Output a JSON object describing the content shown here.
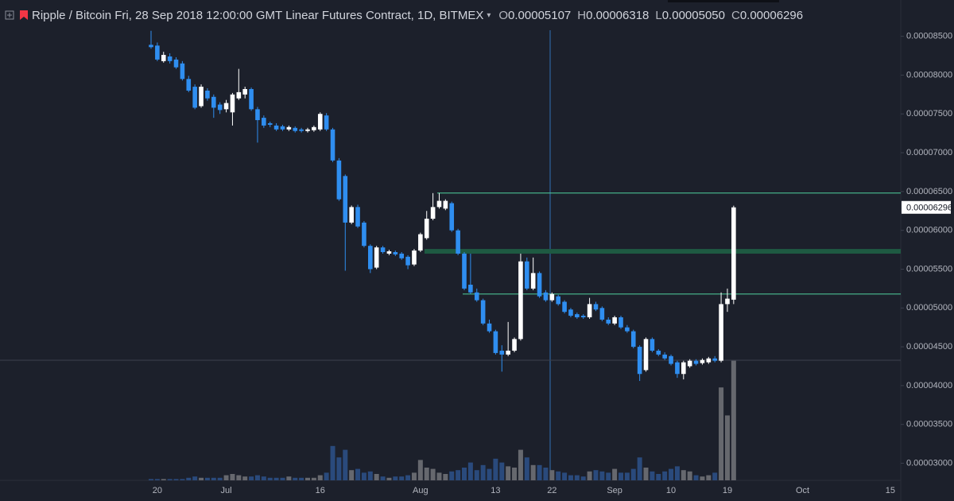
{
  "chart_data": {
    "type": "candlestick",
    "title": "Ripple / Bitcoin Fri, 28 Sep 2018 12:00:00 GMT Linear Futures Contract, 1D, BITMEX",
    "categories": [
      null,
      "20",
      null,
      null,
      null,
      null,
      null,
      null,
      null,
      null,
      null,
      null,
      "Jul",
      null,
      null,
      null,
      null,
      null,
      null,
      null,
      null,
      null,
      null,
      null,
      null,
      null,
      null,
      "16",
      null,
      null,
      null,
      null,
      null,
      null,
      null,
      null,
      null,
      null,
      null,
      null,
      null,
      null,
      null,
      "Aug",
      null,
      null,
      null,
      null,
      null,
      null,
      null,
      null,
      null,
      null,
      null,
      "13",
      null,
      null,
      null,
      null,
      null,
      null,
      null,
      null,
      "22",
      null,
      null,
      null,
      null,
      null,
      null,
      null,
      null,
      null,
      "Sep",
      null,
      null,
      null,
      null,
      null,
      null,
      null,
      null,
      "10",
      null,
      null,
      null,
      null,
      null,
      null,
      null,
      null,
      "19",
      null,
      null,
      null,
      null,
      null,
      null,
      null,
      null,
      null,
      null,
      null,
      "Oct",
      null,
      null,
      null,
      null,
      null,
      null,
      null,
      null,
      null,
      null,
      null,
      null,
      null,
      "15",
      null,
      null
    ],
    "series": [
      {
        "name": "O",
        "header_label": "0.00005107",
        "values": [
          8.39e-05,
          8.38e-05,
          8.18e-05,
          8.24e-05,
          8.2e-05,
          8.15e-05,
          7.95e-05,
          7.85e-05,
          7.6e-05,
          7.8e-05,
          7.72e-05,
          7.62e-05,
          7.56e-05,
          7.52e-05,
          7.7e-05,
          7.75e-05,
          7.82e-05,
          7.56e-05,
          7.45e-05,
          7.38e-05,
          7.35e-05,
          7.34e-05,
          7.3e-05,
          7.32e-05,
          7.3e-05,
          7.28e-05,
          7.29e-05,
          7.3e-05,
          7.48e-05,
          7.3e-05,
          6.9e-05,
          6.7e-05,
          6.1e-05,
          6.3e-05,
          6.1e-05,
          5.8e-05,
          5.52e-05,
          5.78e-05,
          5.7e-05,
          5.72e-05,
          5.7e-05,
          5.66e-05,
          5.56e-05,
          5.74e-05,
          5.9e-05,
          6.15e-05,
          6.3e-05,
          6.28e-05,
          6.35e-05,
          6e-05,
          5.7e-05,
          5.3e-05,
          5.2e-05,
          5.1e-05,
          4.8e-05,
          4.7e-05,
          4.45e-05,
          4.4e-05,
          4.45e-05,
          4.6e-05,
          5.6e-05,
          5.25e-05,
          5.45e-05,
          5.2e-05,
          5.1e-05,
          5.15e-05,
          5.08e-05,
          4.98e-05,
          4.92e-05,
          4.9e-05,
          4.88e-05,
          5.05e-05,
          5e-05,
          4.85e-05,
          4.8e-05,
          4.88e-05,
          4.75e-05,
          4.7e-05,
          4.5e-05,
          4.2e-05,
          4.6e-05,
          4.45e-05,
          4.4e-05,
          4.38e-05,
          4.3e-05,
          4.15e-05,
          4.25e-05,
          4.32e-05,
          4.29e-05,
          4.3e-05,
          4.35e-05,
          4.32e-05,
          5.05e-05,
          5.107e-05,
          null,
          null,
          null,
          null,
          null,
          null,
          null,
          null,
          null,
          null,
          null,
          null,
          null,
          null,
          null,
          null,
          null,
          null,
          null,
          null,
          null,
          null,
          null,
          null,
          null,
          null,
          null
        ]
      },
      {
        "name": "H",
        "header_label": "0.00006318",
        "values": [
          8.57e-05,
          8.42e-05,
          8.3e-05,
          8.28e-05,
          8.23e-05,
          8.18e-05,
          7.99e-05,
          7.88e-05,
          7.88e-05,
          7.83e-05,
          7.75e-05,
          7.65e-05,
          7.68e-05,
          7.77e-05,
          8.08e-05,
          7.85e-05,
          7.84e-05,
          7.59e-05,
          7.48e-05,
          7.4e-05,
          7.38e-05,
          7.36e-05,
          7.35e-05,
          7.34e-05,
          7.32e-05,
          7.32e-05,
          7.35e-05,
          7.52e-05,
          7.51e-05,
          7.32e-05,
          6.93e-05,
          6.72e-05,
          6.32e-05,
          6.33e-05,
          6.12e-05,
          5.82e-05,
          5.8e-05,
          5.8e-05,
          5.75e-05,
          5.74e-05,
          5.72e-05,
          5.68e-05,
          5.76e-05,
          5.97e-05,
          6.25e-05,
          6.48e-05,
          6.48e-05,
          6.4e-05,
          6.37e-05,
          6.02e-05,
          5.72e-05,
          5.7e-05,
          5.25e-05,
          5.12e-05,
          4.85e-05,
          4.72e-05,
          4.52e-05,
          4.82e-05,
          4.62e-05,
          5.7e-05,
          5.65e-05,
          5.65e-05,
          5.47e-05,
          5.23e-05,
          5.2e-05,
          5.17e-05,
          5.1e-05,
          5e-05,
          4.94e-05,
          4.92e-05,
          5.13e-05,
          5.08e-05,
          5.02e-05,
          4.88e-05,
          4.9e-05,
          4.9e-05,
          4.78e-05,
          4.72e-05,
          4.52e-05,
          4.62e-05,
          4.62e-05,
          4.47e-05,
          4.43e-05,
          4.4e-05,
          4.32e-05,
          4.32e-05,
          4.34e-05,
          4.34e-05,
          4.35e-05,
          4.37e-05,
          4.38e-05,
          5.2e-05,
          5.25e-05,
          6.318e-05,
          null,
          null,
          null,
          null,
          null,
          null,
          null,
          null,
          null,
          null,
          null,
          null,
          null,
          null,
          null,
          null,
          null,
          null,
          null,
          null,
          null,
          null,
          null,
          null,
          null,
          null,
          null
        ]
      },
      {
        "name": "L",
        "header_label": "0.00005050",
        "values": [
          8.34e-05,
          8.18e-05,
          8.16e-05,
          8.15e-05,
          8.08e-05,
          7.93e-05,
          7.78e-05,
          7.56e-05,
          7.58e-05,
          7.67e-05,
          7.45e-05,
          7.5e-05,
          7.52e-05,
          7.35e-05,
          7.68e-05,
          7.7e-05,
          7.54e-05,
          7.13e-05,
          7.32e-05,
          7.33e-05,
          7.28e-05,
          7.28e-05,
          7.28e-05,
          7.26e-05,
          7.26e-05,
          7.26e-05,
          7.27e-05,
          7.28e-05,
          7.28e-05,
          6.88e-05,
          6.38e-05,
          5.48e-05,
          6.08e-05,
          6.03e-05,
          5.78e-05,
          5.45e-05,
          5.5e-05,
          5.7e-05,
          5.68e-05,
          5.67e-05,
          5.62e-05,
          5.5e-05,
          5.54e-05,
          5.72e-05,
          5.88e-05,
          6.13e-05,
          6.28e-05,
          6.26e-05,
          5.98e-05,
          5.68e-05,
          5.23e-05,
          5.18e-05,
          5.08e-05,
          4.78e-05,
          4.68e-05,
          4.4e-05,
          4.18e-05,
          4.38e-05,
          4.43e-05,
          4.58e-05,
          5.23e-05,
          5.23e-05,
          5.13e-05,
          5.08e-05,
          5.08e-05,
          5.03e-05,
          4.93e-05,
          4.88e-05,
          4.86e-05,
          4.86e-05,
          4.86e-05,
          4.96e-05,
          4.83e-05,
          4.78e-05,
          4.78e-05,
          4.73e-05,
          4.68e-05,
          4.48e-05,
          4.06e-05,
          4.18e-05,
          4.43e-05,
          4.38e-05,
          4.33e-05,
          4.26e-05,
          4.1e-05,
          4.08e-05,
          4.23e-05,
          4.26e-05,
          4.27e-05,
          4.28e-05,
          4.3e-05,
          4.3e-05,
          4.95e-05,
          5.05e-05,
          null,
          null,
          null,
          null,
          null,
          null,
          null,
          null,
          null,
          null,
          null,
          null,
          null,
          null,
          null,
          null,
          null,
          null,
          null,
          null,
          null,
          null,
          null,
          null,
          null,
          null,
          null
        ]
      },
      {
        "name": "C",
        "header_label": "0.00006296",
        "values": [
          8.36e-05,
          8.2e-05,
          8.26e-05,
          8.18e-05,
          8.1e-05,
          7.95e-05,
          7.8e-05,
          7.58e-05,
          7.85e-05,
          7.7e-05,
          7.58e-05,
          7.55e-05,
          7.64e-05,
          7.75e-05,
          7.78e-05,
          7.82e-05,
          7.56e-05,
          7.42e-05,
          7.35e-05,
          7.36e-05,
          7.3e-05,
          7.3e-05,
          7.33e-05,
          7.28e-05,
          7.28e-05,
          7.3e-05,
          7.33e-05,
          7.5e-05,
          7.3e-05,
          6.9e-05,
          6.4e-05,
          6.1e-05,
          6.3e-05,
          6.05e-05,
          5.8e-05,
          5.5e-05,
          5.78e-05,
          5.72e-05,
          5.73e-05,
          5.69e-05,
          5.64e-05,
          5.55e-05,
          5.74e-05,
          5.95e-05,
          6.15e-05,
          6.3e-05,
          6.38e-05,
          6.38e-05,
          6e-05,
          5.7e-05,
          5.25e-05,
          5.2e-05,
          5.1e-05,
          4.8e-05,
          4.7e-05,
          4.42e-05,
          4.4e-05,
          4.45e-05,
          4.6e-05,
          5.6e-05,
          5.25e-05,
          5.45e-05,
          5.15e-05,
          5.1e-05,
          5.18e-05,
          5.05e-05,
          4.95e-05,
          4.9e-05,
          4.88e-05,
          4.88e-05,
          5.05e-05,
          4.98e-05,
          4.85e-05,
          4.8e-05,
          4.88e-05,
          4.75e-05,
          4.7e-05,
          4.5e-05,
          4.15e-05,
          4.6e-05,
          4.45e-05,
          4.4e-05,
          4.35e-05,
          4.28e-05,
          4.15e-05,
          4.3e-05,
          4.32e-05,
          4.28e-05,
          4.33e-05,
          4.35e-05,
          4.32e-05,
          5.05e-05,
          5.12e-05,
          6.296e-05,
          null,
          null,
          null,
          null,
          null,
          null,
          null,
          null,
          null,
          null,
          null,
          null,
          null,
          null,
          null,
          null,
          null,
          null,
          null,
          null,
          null,
          null,
          null,
          null,
          null,
          null,
          null
        ]
      }
    ],
    "volume": {
      "vlim": [
        0,
        100
      ],
      "up_color": "#66686e",
      "down_color": "#2a4a7c",
      "values": [
        1,
        1,
        1,
        1,
        1,
        1,
        2,
        3,
        2,
        2,
        2,
        2,
        4,
        5,
        4,
        3,
        3,
        4,
        3,
        2,
        2,
        2,
        3,
        2,
        2,
        2,
        2,
        4,
        6,
        27,
        18,
        24,
        8,
        9,
        6,
        7,
        5,
        3,
        2,
        3,
        3,
        4,
        6,
        16,
        10,
        9,
        6,
        5,
        7,
        8,
        10,
        14,
        8,
        12,
        9,
        17,
        14,
        11,
        10,
        24,
        18,
        12,
        12,
        10,
        8,
        7,
        6,
        4,
        4,
        3,
        7,
        8,
        7,
        6,
        9,
        6,
        6,
        9,
        18,
        10,
        7,
        5,
        7,
        9,
        11,
        8,
        7,
        4,
        3,
        4,
        6,
        73,
        51,
        94,
        null,
        null,
        null,
        null,
        null,
        null,
        null,
        null,
        null,
        null,
        null,
        null,
        null,
        null,
        null,
        null,
        null,
        null,
        null,
        null,
        null,
        null,
        null,
        null,
        null,
        null,
        null
      ]
    },
    "up_color": "#ffffff",
    "down_color": "#2f8ef0",
    "ylim": [
      2.78e-05,
      8.66e-05
    ],
    "yticks": [
      {
        "value": 8.5e-05,
        "label": "0.00008500"
      },
      {
        "value": 8e-05,
        "label": "0.00008000"
      },
      {
        "value": 7.5e-05,
        "label": "0.00007500"
      },
      {
        "value": 7e-05,
        "label": "0.00007000"
      },
      {
        "value": 6.5e-05,
        "label": "0.00006500"
      },
      {
        "value": 6e-05,
        "label": "0.00006000"
      },
      {
        "value": 5.5e-05,
        "label": "0.00005500"
      },
      {
        "value": 5e-05,
        "label": "0.00005000"
      },
      {
        "value": 4.5e-05,
        "label": "0.00004500"
      },
      {
        "value": 4e-05,
        "label": "0.00004000"
      },
      {
        "value": 3.5e-05,
        "label": "0.00003500"
      },
      {
        "value": 3e-05,
        "label": "0.00003000"
      }
    ],
    "grid": false,
    "levels": [
      {
        "value": 6.48e-05,
        "color": "#4fcf9d"
      },
      {
        "value": 5.18e-05,
        "color": "#4fcf9d"
      }
    ],
    "zone": [
      5.7e-05,
      5.76e-05
    ],
    "zone_color": "#1e5a42"
  }
}
